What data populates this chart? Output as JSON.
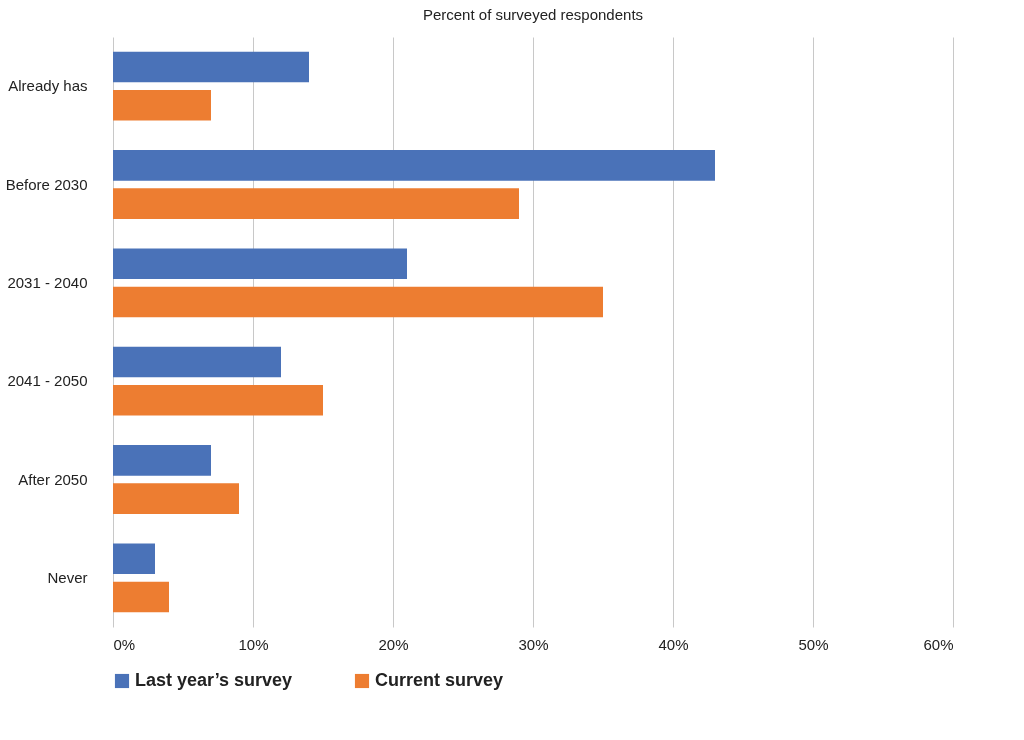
{
  "chart_data": {
    "type": "bar",
    "orientation": "horizontal",
    "title": "Percent of surveyed respondents",
    "categories": [
      "Already has",
      "Before 2030",
      "2031 - 2040",
      "2041 - 2050",
      "After 2050",
      "Never"
    ],
    "series": [
      {
        "name": "Last year’s survey",
        "color": "#4a72b8",
        "values": [
          14,
          43,
          21,
          12,
          7,
          3
        ]
      },
      {
        "name": "Current survey",
        "color": "#ed7d31",
        "values": [
          7,
          29,
          35,
          15,
          9,
          4
        ]
      }
    ],
    "xlim": [
      0,
      60
    ],
    "xticks": [
      {
        "value": 0,
        "label": "0%"
      },
      {
        "value": 10,
        "label": "10%"
      },
      {
        "value": 20,
        "label": "20%"
      },
      {
        "value": 30,
        "label": "30%"
      },
      {
        "value": 40,
        "label": "40%"
      },
      {
        "value": 50,
        "label": "50%"
      },
      {
        "value": 60,
        "label": "60%"
      }
    ],
    "grid": "x",
    "legend": "bottom"
  }
}
